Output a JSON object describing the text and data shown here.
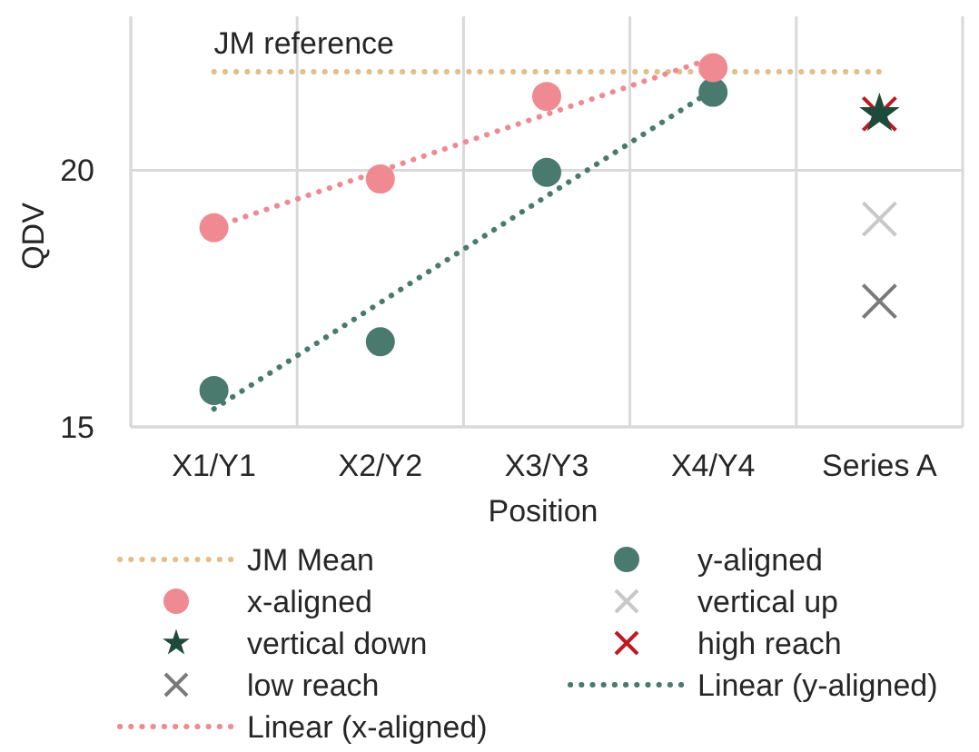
{
  "chart_data": {
    "type": "scatter",
    "xlabel": "Position",
    "ylabel": "QDV",
    "categories": [
      "X1/Y1",
      "X2/Y2",
      "X3/Y3",
      "X4/Y4",
      "Series A"
    ],
    "ylim": [
      15,
      23
    ],
    "yticks": [
      15,
      20
    ],
    "grid": true,
    "legend": "bottom",
    "annotations": [
      {
        "text": "JM reference",
        "x": "X1/Y1",
        "y": 21.92
      }
    ],
    "series": [
      {
        "name": "JM Mean",
        "type": "line",
        "color": "#e0c08a",
        "line_style": "dotted",
        "marker": "none",
        "values": [
          21.92,
          21.92,
          21.92,
          21.92,
          21.92
        ]
      },
      {
        "name": "y-aligned",
        "color": "#4a7a6e",
        "marker": "circle",
        "values": [
          15.71,
          16.66,
          19.96,
          21.52,
          null
        ]
      },
      {
        "name": "x-aligned",
        "color": "#ef8a92",
        "marker": "circle",
        "values": [
          18.88,
          19.83,
          21.44,
          22.0,
          null
        ]
      },
      {
        "name": "vertical up",
        "color": "#c8c8c8",
        "marker": "cross",
        "x": [
          "Series A"
        ],
        "values": [
          19.05
        ]
      },
      {
        "name": "vertical down",
        "color": "#1e4a3c",
        "marker": "star",
        "x": [
          "Series A"
        ],
        "values": [
          21.1
        ]
      },
      {
        "name": "high reach",
        "color": "#c0181e",
        "marker": "cross",
        "x": [
          "Series A"
        ],
        "values": [
          21.1
        ]
      },
      {
        "name": "low reach",
        "color": "#7a7a7a",
        "marker": "cross",
        "x": [
          "Series A"
        ],
        "values": [
          17.45
        ]
      },
      {
        "name": "Linear (y-aligned)",
        "type": "line",
        "color": "#4a7a6e",
        "line_style": "dotted",
        "marker": "none",
        "x": [
          "X1/Y1",
          "X4/Y4"
        ],
        "values": [
          15.35,
          21.57
        ]
      },
      {
        "name": "Linear (x-aligned)",
        "type": "line",
        "color": "#ef8a92",
        "line_style": "dotted",
        "marker": "none",
        "x": [
          "X1/Y1",
          "X4/Y4"
        ],
        "values": [
          18.89,
          22.19
        ]
      }
    ]
  }
}
